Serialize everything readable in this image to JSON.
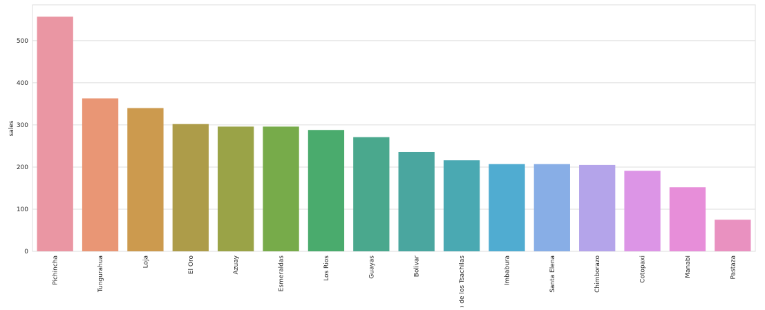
{
  "chart_data": {
    "type": "bar",
    "title": "",
    "xlabel": "",
    "ylabel": "sales",
    "ylim": [
      0,
      585
    ],
    "yticks": [
      0,
      100,
      200,
      300,
      400,
      500
    ],
    "grid": true,
    "categories": [
      "Pichincha",
      "Tungurahua",
      "Loja",
      "El Oro",
      "Azuay",
      "Esmeraldas",
      "Los Rios",
      "Guayas",
      "Bolivar",
      "o de los Tsachilas",
      "Imbabura",
      "Santa Elena",
      "Chimborazo",
      "Cotopaxi",
      "Manabi",
      "Pastaza"
    ],
    "values": [
      557,
      363,
      340,
      302,
      296,
      296,
      288,
      271,
      236,
      216,
      207,
      207,
      205,
      191,
      152,
      75
    ],
    "colors": [
      "#ea96a3",
      "#e99675",
      "#cc9a4e",
      "#ad9c49",
      "#9aa347",
      "#77ab4a",
      "#4aab6d",
      "#4aa88d",
      "#4aa69f",
      "#4aa9b2",
      "#50acd1",
      "#88aee6",
      "#b4a4ea",
      "#dc95e6",
      "#e78ed9",
      "#e991c0"
    ]
  }
}
